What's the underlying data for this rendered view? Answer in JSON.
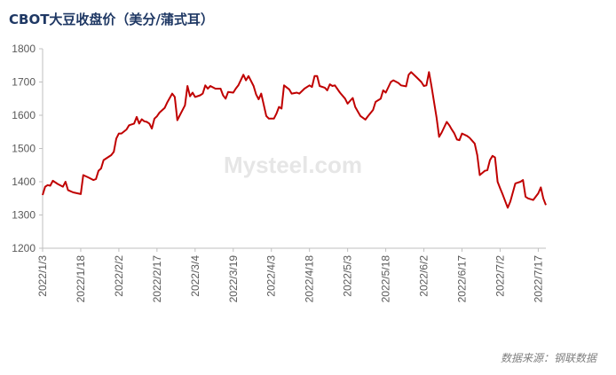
{
  "chart_data": {
    "type": "line",
    "title": "CBOT大豆收盘价（美分/蒲式耳）",
    "source": "数据来源：钢联数据",
    "watermark": "Mysteel.com",
    "x": [
      "2022/1/3",
      "2022/1/4",
      "2022/1/5",
      "2022/1/6",
      "2022/1/7",
      "2022/1/9",
      "2022/1/11",
      "2022/1/12",
      "2022/1/13",
      "2022/1/15",
      "2022/1/18",
      "2022/1/19",
      "2022/1/21",
      "2022/1/23",
      "2022/1/24",
      "2022/1/25",
      "2022/1/26",
      "2022/1/27",
      "2022/1/30",
      "2022/1/31",
      "2022/2/1",
      "2022/2/2",
      "2022/2/3",
      "2022/2/5",
      "2022/2/6",
      "2022/2/8",
      "2022/2/9",
      "2022/2/10",
      "2022/2/11",
      "2022/2/12",
      "2022/2/13",
      "2022/2/14",
      "2022/2/15",
      "2022/2/16",
      "2022/2/17",
      "2022/2/18",
      "2022/2/20",
      "2022/2/21",
      "2022/2/23",
      "2022/2/24",
      "2022/2/25",
      "2022/2/26",
      "2022/2/28",
      "2022/3/1",
      "2022/3/2",
      "2022/3/3",
      "2022/3/4",
      "2022/3/6",
      "2022/3/7",
      "2022/3/8",
      "2022/3/9",
      "2022/3/10",
      "2022/3/12",
      "2022/3/14",
      "2022/3/15",
      "2022/3/16",
      "2022/3/17",
      "2022/3/19",
      "2022/3/20",
      "2022/3/21",
      "2022/3/23",
      "2022/3/24",
      "2022/3/25",
      "2022/3/27",
      "2022/3/28",
      "2022/3/29",
      "2022/3/30",
      "2022/4/1",
      "2022/4/2",
      "2022/4/4",
      "2022/4/5",
      "2022/4/6",
      "2022/4/7",
      "2022/4/8",
      "2022/4/10",
      "2022/4/11",
      "2022/4/13",
      "2022/4/14",
      "2022/4/16",
      "2022/4/18",
      "2022/4/19",
      "2022/4/20",
      "2022/4/21",
      "2022/4/22",
      "2022/4/24",
      "2022/4/25",
      "2022/4/26",
      "2022/4/27",
      "2022/4/28",
      "2022/4/30",
      "2022/5/2",
      "2022/5/3",
      "2022/5/5",
      "2022/5/6",
      "2022/5/8",
      "2022/5/10",
      "2022/5/11",
      "2022/5/13",
      "2022/5/14",
      "2022/5/15",
      "2022/5/16",
      "2022/5/17",
      "2022/5/18",
      "2022/5/20",
      "2022/5/21",
      "2022/5/23",
      "2022/5/24",
      "2022/5/26",
      "2022/5/27",
      "2022/5/28",
      "2022/5/30",
      "2022/6/1",
      "2022/6/2",
      "2022/6/3",
      "2022/6/4",
      "2022/6/5",
      "2022/6/7",
      "2022/6/8",
      "2022/6/9",
      "2022/6/11",
      "2022/6/12",
      "2022/6/13",
      "2022/6/14",
      "2022/6/15",
      "2022/6/16",
      "2022/6/17",
      "2022/6/19",
      "2022/6/20",
      "2022/6/22",
      "2022/6/23",
      "2022/6/24",
      "2022/6/26",
      "2022/6/27",
      "2022/6/28",
      "2022/6/29",
      "2022/6/30",
      "2022/7/1",
      "2022/7/2",
      "2022/7/3",
      "2022/7/5",
      "2022/7/6",
      "2022/7/8",
      "2022/7/10",
      "2022/7/11",
      "2022/7/12",
      "2022/7/13",
      "2022/7/15",
      "2022/7/17",
      "2022/7/18",
      "2022/7/19",
      "2022/7/20"
    ],
    "series": [
      {
        "name": "CBOT大豆收盘价",
        "color": "#c00000",
        "values": [
          1360,
          1385,
          1390,
          1388,
          1403,
          1393,
          1385,
          1400,
          1375,
          1368,
          1363,
          1420,
          1413,
          1405,
          1408,
          1433,
          1440,
          1465,
          1480,
          1490,
          1530,
          1545,
          1545,
          1557,
          1570,
          1575,
          1595,
          1575,
          1588,
          1582,
          1580,
          1575,
          1560,
          1590,
          1597,
          1608,
          1622,
          1638,
          1665,
          1655,
          1585,
          1600,
          1630,
          1688,
          1657,
          1668,
          1655,
          1660,
          1665,
          1690,
          1680,
          1688,
          1680,
          1680,
          1660,
          1650,
          1670,
          1668,
          1680,
          1690,
          1722,
          1705,
          1718,
          1688,
          1663,
          1648,
          1665,
          1598,
          1590,
          1590,
          1605,
          1625,
          1620,
          1690,
          1678,
          1665,
          1668,
          1665,
          1680,
          1690,
          1685,
          1718,
          1718,
          1688,
          1683,
          1675,
          1693,
          1688,
          1690,
          1668,
          1650,
          1635,
          1652,
          1625,
          1598,
          1587,
          1597,
          1616,
          1640,
          1645,
          1650,
          1675,
          1668,
          1700,
          1705,
          1697,
          1690,
          1687,
          1722,
          1730,
          1715,
          1700,
          1688,
          1690,
          1730,
          1688,
          1592,
          1535,
          1548,
          1580,
          1570,
          1557,
          1545,
          1527,
          1525,
          1545,
          1538,
          1532,
          1515,
          1480,
          1420,
          1433,
          1435,
          1465,
          1478,
          1473,
          1400,
          1380,
          1362,
          1322,
          1340,
          1395,
          1400,
          1405,
          1355,
          1350,
          1345,
          1365,
          1383,
          1350,
          1330
        ]
      }
    ],
    "xlim": [
      "2022/1/3",
      "2022/7/20"
    ],
    "xticks": [
      "2022/1/3",
      "2022/1/18",
      "2022/2/2",
      "2022/2/17",
      "2022/3/4",
      "2022/3/19",
      "2022/4/3",
      "2022/4/18",
      "2022/5/3",
      "2022/5/18",
      "2022/6/2",
      "2022/6/17",
      "2022/7/2",
      "2022/7/17"
    ],
    "ylim": [
      1200,
      1800
    ],
    "yticks": [
      1200,
      1300,
      1400,
      1500,
      1600,
      1700,
      1800
    ],
    "grid": false
  }
}
